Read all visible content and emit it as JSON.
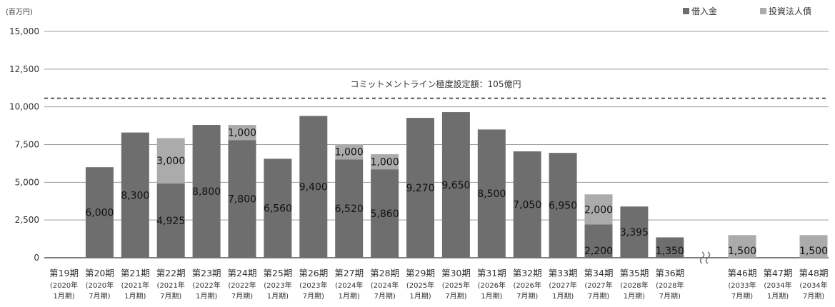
{
  "chart_data": {
    "type": "bar",
    "stacked": true,
    "unit": "(百万円)",
    "ylim": [
      0,
      15000
    ],
    "yticks": [
      "0",
      "2,500",
      "5,000",
      "7,500",
      "10,000",
      "12,500",
      "15,000"
    ],
    "ytick_values": [
      0,
      2500,
      5000,
      7500,
      10000,
      12500,
      15000
    ],
    "grid": true,
    "legend_position": "top-right",
    "axis_break": "between 第36期 and 第46期",
    "reference_line": {
      "value": 10500,
      "style": "dashed",
      "label": "コミットメントライン極度設定額：105億円"
    },
    "categories": [
      {
        "period": "第19期",
        "date": "(2020年",
        "month": "1月期)"
      },
      {
        "period": "第20期",
        "date": "(2020年",
        "month": "7月期)"
      },
      {
        "period": "第21期",
        "date": "(2021年",
        "month": "1月期)"
      },
      {
        "period": "第22期",
        "date": "(2021年",
        "month": "7月期)"
      },
      {
        "period": "第23期",
        "date": "(2022年",
        "month": "1月期)"
      },
      {
        "period": "第24期",
        "date": "(2022年",
        "month": "7月期)"
      },
      {
        "period": "第25期",
        "date": "(2023年",
        "month": "1月期)"
      },
      {
        "period": "第26期",
        "date": "(2023年",
        "month": "7月期)"
      },
      {
        "period": "第27期",
        "date": "(2024年",
        "month": "1月期)"
      },
      {
        "period": "第28期",
        "date": "(2024年",
        "month": "7月期)"
      },
      {
        "period": "第29期",
        "date": "(2025年",
        "month": "1月期)"
      },
      {
        "period": "第30期",
        "date": "(2025年",
        "month": "7月期)"
      },
      {
        "period": "第31期",
        "date": "(2026年",
        "month": "1月期)"
      },
      {
        "period": "第32期",
        "date": "(2026年",
        "month": "7月期)"
      },
      {
        "period": "第33期",
        "date": "(2027年",
        "month": "1月期)"
      },
      {
        "period": "第34期",
        "date": "(2027年",
        "month": "7月期)"
      },
      {
        "period": "第35期",
        "date": "(2028年",
        "month": "1月期)"
      },
      {
        "period": "第36期",
        "date": "(2028年",
        "month": "7月期)"
      },
      {
        "period": "第46期",
        "date": "(2033年",
        "month": "7月期)"
      },
      {
        "period": "第47期",
        "date": "(2034年",
        "month": "1月期)"
      },
      {
        "period": "第48期",
        "date": "(2034年",
        "month": "7月期)"
      }
    ],
    "series": [
      {
        "name": "借入金",
        "color": "#6e6e6e",
        "values": [
          0,
          6000,
          8300,
          4925,
          8800,
          7800,
          6560,
          9400,
          6520,
          5860,
          9270,
          9650,
          8500,
          7050,
          6950,
          2200,
          3395,
          1350,
          0,
          0,
          0
        ],
        "labels": [
          "",
          "6,000",
          "8,300",
          "4,925",
          "8,800",
          "7,800",
          "6,560",
          "9,400",
          "6,520",
          "5,860",
          "9,270",
          "9,650",
          "8,500",
          "7,050",
          "6,950",
          "2,200",
          "3,395",
          "1,350",
          "",
          "",
          ""
        ]
      },
      {
        "name": "投資法人債",
        "color": "#ababab",
        "values": [
          0,
          0,
          0,
          3000,
          0,
          1000,
          0,
          0,
          1000,
          1000,
          0,
          0,
          0,
          0,
          0,
          2000,
          0,
          0,
          1500,
          0,
          1500
        ],
        "labels": [
          "",
          "",
          "",
          "3,000",
          "",
          "1,000",
          "",
          "",
          "1,000",
          "1,000",
          "",
          "",
          "",
          "",
          "",
          "2,000",
          "",
          "",
          "1,500",
          "",
          "1,500"
        ]
      }
    ]
  }
}
